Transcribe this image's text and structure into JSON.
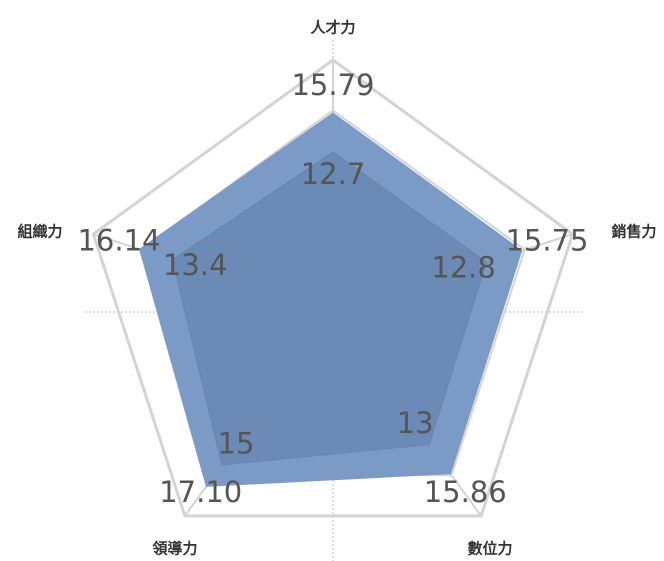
{
  "chart_data": {
    "type": "radar",
    "categories": [
      "人才力",
      "銷售力",
      "數位力",
      "領導力",
      "組織力"
    ],
    "ylim": [
      0,
      20
    ],
    "yticks": [
      0,
      4,
      8,
      12,
      16,
      20
    ],
    "grid": true,
    "series": [
      {
        "color": "#7b9bc6",
        "values": [
          15.79,
          15.75,
          15.86,
          17.1,
          16.14
        ],
        "value_labels": [
          "15.79",
          "15.75",
          "15.86",
          "17.10",
          "16.14"
        ],
        "label_colors": [
          "#555555",
          "#ff0000",
          "#555555",
          "#555555",
          "#555555"
        ]
      },
      {
        "color": "#6684b0",
        "values": [
          12.7,
          12.8,
          13,
          15,
          13.4
        ],
        "value_labels": [
          "12.7",
          "12.8",
          "13",
          "15",
          "13.4"
        ]
      }
    ]
  }
}
